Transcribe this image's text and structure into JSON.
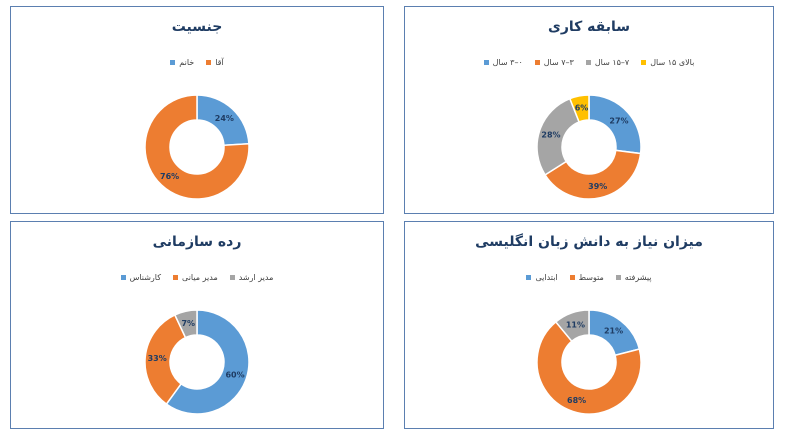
{
  "chart_data": [
    {
      "type": "pie",
      "title": "سابقه کاری",
      "categories": [
        "بالای ۱۵ سال",
        "۷–۱۵ سال",
        "۳–۷ سال",
        "۰–۳ سال"
      ],
      "values": [
        6,
        28,
        39,
        27
      ],
      "labels": [
        "6%",
        "28%",
        "39%",
        "27%"
      ],
      "colors": [
        "#ffc000",
        "#a5a5a5",
        "#ed7d31",
        "#5b9bd5"
      ],
      "slice_order": [
        3,
        2,
        1,
        0
      ]
    },
    {
      "type": "pie",
      "title": "جنسیت",
      "categories": [
        "آقا",
        "خانم"
      ],
      "values": [
        76,
        24
      ],
      "labels": [
        "76%",
        "24%"
      ],
      "colors": [
        "#ed7d31",
        "#5b9bd5"
      ],
      "slice_order": [
        1,
        0
      ]
    },
    {
      "type": "pie",
      "title": "میزان نیاز به دانش زبان انگلیسی",
      "categories": [
        "پیشرفته",
        "متوسط",
        "ابتدایی"
      ],
      "values": [
        11,
        68,
        21
      ],
      "labels": [
        "11%",
        "68%",
        "21%"
      ],
      "colors": [
        "#a5a5a5",
        "#ed7d31",
        "#5b9bd5"
      ],
      "slice_order": [
        2,
        1,
        0
      ]
    },
    {
      "type": "pie",
      "title": "رده سازمانی",
      "categories": [
        "مدیر ارشد",
        "مدیر میانی",
        "کارشناس"
      ],
      "values": [
        7,
        33,
        60
      ],
      "labels": [
        "7%",
        "33%",
        "60%"
      ],
      "colors": [
        "#a5a5a5",
        "#ed7d31",
        "#5b9bd5"
      ],
      "slice_order": [
        2,
        1,
        0
      ]
    }
  ]
}
